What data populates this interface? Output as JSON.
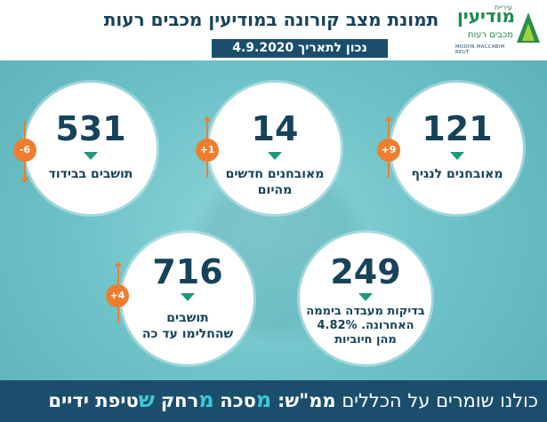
{
  "header": {
    "title": "תמונת מצב קורונה במודיעין מכבים רעות",
    "date": "נכון לתאריך 4.9.2020"
  },
  "logo": {
    "top": "עיריית",
    "main": "מודיעין",
    "sub": "מכבים רעות",
    "en": "MODIIN MACCABIM REUT"
  },
  "stats": [
    {
      "value": "121",
      "label_line1": "מאובחנים לנגיף",
      "label_line2": "",
      "change": "+9",
      "direction": "up"
    },
    {
      "value": "14",
      "label_line1": "מאובחנים חדשים",
      "label_line2": "מהיום",
      "change": "+1",
      "direction": "up"
    },
    {
      "value": "531",
      "label_line1": "תושבים בבידוד",
      "label_line2": "",
      "change": "-6",
      "direction": "down"
    },
    {
      "value": "249",
      "label_line1": "בדיקות מעבדה ביממה",
      "label_line2": "האחרונה. 4.82%",
      "label_line3": "מהן חיוביות",
      "change": "",
      "direction": ""
    },
    {
      "value": "716",
      "label_line1": "תושבים",
      "label_line2": "שהחלימו עד כה",
      "change": "+4",
      "direction": "up"
    }
  ],
  "footer": {
    "intro": "כולנו שומרים על הכללים",
    "mamash": "ממ\"ש:",
    "m1": "מ",
    "w1": "סכה",
    "m2": "מ",
    "w2": "רחק",
    "s": "ש",
    "w3": "טיפת ידיים"
  },
  "colors": {
    "accent_orange": "#f07d2e",
    "navy": "#1b4e6d",
    "teal_bg": "#6ec3c8",
    "triangle_green": "#1c9a7e"
  }
}
